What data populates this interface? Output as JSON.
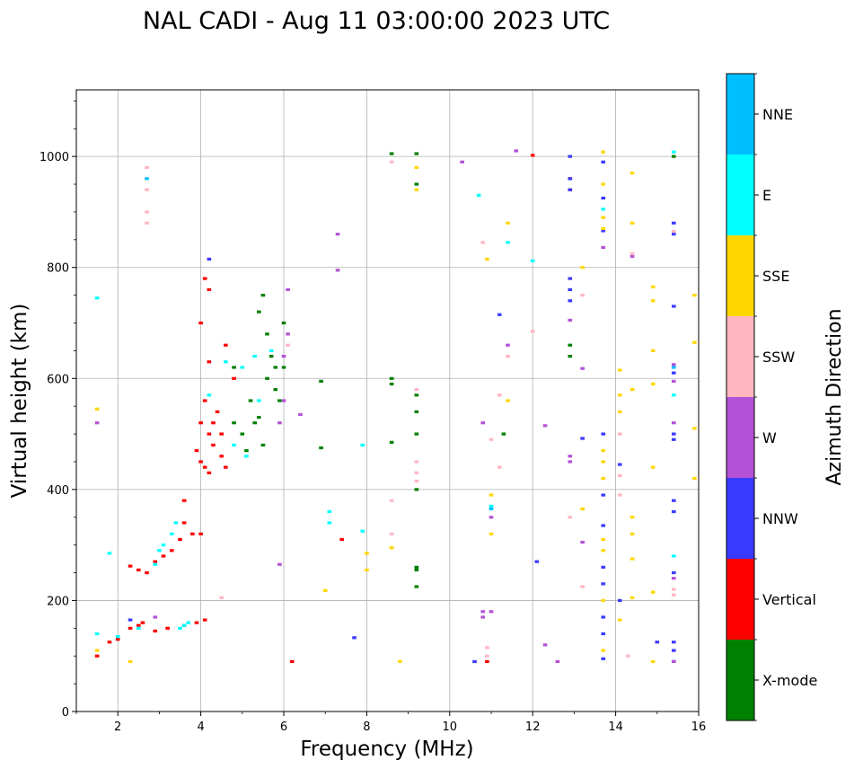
{
  "chart_data": {
    "type": "scatter",
    "title": "NAL CADI - Aug 11 03:00:00 2023 UTC",
    "xlabel": "Frequency (MHz)",
    "ylabel": "Virtual height (km)",
    "xlim": [
      1,
      16
    ],
    "ylim": [
      0,
      1120
    ],
    "xticks": [
      2,
      4,
      6,
      8,
      10,
      12,
      14,
      16
    ],
    "yticks": [
      0,
      200,
      400,
      600,
      800,
      1000
    ],
    "grid": true,
    "colorbar": {
      "label": "Azimuth Direction",
      "categories": [
        "X-mode",
        "Vertical",
        "NNW",
        "W",
        "SSW",
        "SSE",
        "E",
        "NNE"
      ],
      "colors": [
        "#008000",
        "#ff0000",
        "#3a3aff",
        "#b352d6",
        "#ffb6c1",
        "#ffd700",
        "#00ffff",
        "#00bfff"
      ]
    },
    "series": [
      {
        "name": "Vertical",
        "points": [
          [
            1.5,
            100
          ],
          [
            1.8,
            125
          ],
          [
            2.0,
            130
          ],
          [
            2.3,
            150
          ],
          [
            2.5,
            155
          ],
          [
            2.6,
            160
          ],
          [
            2.9,
            145
          ],
          [
            3.2,
            150
          ],
          [
            3.6,
            155
          ],
          [
            3.9,
            160
          ],
          [
            4.1,
            165
          ],
          [
            2.3,
            262
          ],
          [
            2.5,
            255
          ],
          [
            2.7,
            250
          ],
          [
            2.9,
            270
          ],
          [
            3.1,
            280
          ],
          [
            3.3,
            290
          ],
          [
            3.5,
            310
          ],
          [
            3.6,
            340
          ],
          [
            3.6,
            380
          ],
          [
            3.8,
            320
          ],
          [
            4.0,
            320
          ],
          [
            3.9,
            470
          ],
          [
            4.0,
            450
          ],
          [
            4.1,
            440
          ],
          [
            4.2,
            430
          ],
          [
            4.2,
            500
          ],
          [
            4.3,
            520
          ],
          [
            4.4,
            540
          ],
          [
            4.5,
            460
          ],
          [
            4.6,
            440
          ],
          [
            4.0,
            520
          ],
          [
            4.1,
            560
          ],
          [
            4.2,
            630
          ],
          [
            4.0,
            700
          ],
          [
            4.1,
            780
          ],
          [
            4.2,
            760
          ],
          [
            4.6,
            660
          ],
          [
            4.8,
            600
          ],
          [
            4.3,
            480
          ],
          [
            4.5,
            500
          ],
          [
            6.2,
            90
          ],
          [
            7.4,
            310
          ],
          [
            10.9,
            90
          ],
          [
            12.0,
            1002
          ],
          [
            12.9,
            940
          ],
          [
            12.9,
            960
          ]
        ]
      },
      {
        "name": "X-mode",
        "points": [
          [
            4.8,
            520
          ],
          [
            5.0,
            500
          ],
          [
            5.2,
            560
          ],
          [
            5.4,
            530
          ],
          [
            5.6,
            600
          ],
          [
            5.8,
            620
          ],
          [
            5.9,
            560
          ],
          [
            5.5,
            480
          ],
          [
            5.7,
            640
          ],
          [
            6.0,
            700
          ],
          [
            5.6,
            680
          ],
          [
            5.3,
            520
          ],
          [
            5.1,
            470
          ],
          [
            5.8,
            580
          ],
          [
            6.0,
            620
          ],
          [
            4.8,
            620
          ],
          [
            5.4,
            720
          ],
          [
            5.5,
            750
          ],
          [
            6.9,
            595
          ],
          [
            6.9,
            475
          ],
          [
            8.6,
            600
          ],
          [
            8.6,
            590
          ],
          [
            8.6,
            485
          ],
          [
            9.2,
            260
          ],
          [
            9.2,
            255
          ],
          [
            9.2,
            400
          ],
          [
            9.2,
            570
          ],
          [
            9.2,
            1005
          ],
          [
            9.2,
            950
          ],
          [
            9.2,
            500
          ],
          [
            9.2,
            540
          ],
          [
            9.2,
            225
          ],
          [
            11.3,
            500
          ],
          [
            12.9,
            660
          ],
          [
            12.9,
            640
          ],
          [
            15.4,
            1000
          ],
          [
            8.6,
            1005
          ]
        ]
      },
      {
        "name": "NNW",
        "points": [
          [
            4.2,
            815
          ],
          [
            7.7,
            133
          ],
          [
            11.2,
            715
          ],
          [
            12.1,
            270
          ],
          [
            12.9,
            960
          ],
          [
            12.9,
            1000
          ],
          [
            12.9,
            940
          ],
          [
            12.9,
            780
          ],
          [
            12.9,
            760
          ],
          [
            12.9,
            740
          ],
          [
            13.2,
            492
          ],
          [
            13.7,
            95
          ],
          [
            13.7,
            140
          ],
          [
            13.7,
            170
          ],
          [
            13.7,
            230
          ],
          [
            13.7,
            260
          ],
          [
            13.7,
            335
          ],
          [
            13.7,
            390
          ],
          [
            13.7,
            500
          ],
          [
            13.7,
            866
          ],
          [
            13.7,
            925
          ],
          [
            13.7,
            990
          ],
          [
            14.1,
            200
          ],
          [
            14.1,
            445
          ],
          [
            15.0,
            125
          ],
          [
            15.4,
            90
          ],
          [
            15.4,
            110
          ],
          [
            15.4,
            125
          ],
          [
            15.4,
            250
          ],
          [
            15.4,
            380
          ],
          [
            15.4,
            360
          ],
          [
            15.4,
            490
          ],
          [
            15.4,
            500
          ],
          [
            15.4,
            610
          ],
          [
            15.4,
            730
          ],
          [
            15.4,
            860
          ],
          [
            15.4,
            880
          ],
          [
            10.6,
            90
          ],
          [
            2.3,
            165
          ]
        ]
      },
      {
        "name": "W",
        "points": [
          [
            2.9,
            170
          ],
          [
            6.0,
            640
          ],
          [
            6.1,
            680
          ],
          [
            6.1,
            760
          ],
          [
            5.9,
            520
          ],
          [
            6.0,
            560
          ],
          [
            6.4,
            535
          ],
          [
            7.3,
            860
          ],
          [
            7.3,
            795
          ],
          [
            5.9,
            265
          ],
          [
            10.3,
            990
          ],
          [
            10.8,
            520
          ],
          [
            10.8,
            180
          ],
          [
            10.8,
            170
          ],
          [
            11.0,
            180
          ],
          [
            11.0,
            350
          ],
          [
            11.4,
            660
          ],
          [
            11.6,
            1010
          ],
          [
            12.3,
            515
          ],
          [
            12.3,
            120
          ],
          [
            12.6,
            90
          ],
          [
            12.9,
            460
          ],
          [
            12.9,
            450
          ],
          [
            12.9,
            705
          ],
          [
            13.2,
            618
          ],
          [
            13.2,
            305
          ],
          [
            13.7,
            836
          ],
          [
            15.4,
            520
          ],
          [
            15.4,
            595
          ],
          [
            15.4,
            625
          ],
          [
            15.4,
            240
          ],
          [
            15.4,
            90
          ],
          [
            14.4,
            820
          ],
          [
            1.5,
            520
          ]
        ]
      },
      {
        "name": "SSW",
        "points": [
          [
            2.7,
            980
          ],
          [
            2.7,
            940
          ],
          [
            2.7,
            900
          ],
          [
            2.7,
            880
          ],
          [
            4.5,
            205
          ],
          [
            6.1,
            660
          ],
          [
            8.6,
            380
          ],
          [
            8.6,
            320
          ],
          [
            8.6,
            990
          ],
          [
            9.2,
            580
          ],
          [
            9.2,
            450
          ],
          [
            9.2,
            430
          ],
          [
            9.2,
            415
          ],
          [
            10.8,
            845
          ],
          [
            10.9,
            100
          ],
          [
            10.9,
            115
          ],
          [
            11.0,
            490
          ],
          [
            11.2,
            570
          ],
          [
            11.2,
            440
          ],
          [
            11.4,
            640
          ],
          [
            12.0,
            685
          ],
          [
            12.9,
            350
          ],
          [
            13.2,
            750
          ],
          [
            13.2,
            225
          ],
          [
            14.1,
            390
          ],
          [
            14.1,
            425
          ],
          [
            14.1,
            500
          ],
          [
            14.3,
            100
          ],
          [
            14.4,
            825
          ],
          [
            15.4,
            210
          ],
          [
            15.4,
            220
          ],
          [
            15.4,
            865
          ],
          [
            15.4,
            1008
          ]
        ]
      },
      {
        "name": "SSE",
        "points": [
          [
            1.5,
            545
          ],
          [
            1.5,
            110
          ],
          [
            2.3,
            90
          ],
          [
            7.0,
            218
          ],
          [
            8.0,
            285
          ],
          [
            8.0,
            255
          ],
          [
            8.6,
            295
          ],
          [
            8.8,
            90
          ],
          [
            9.2,
            940
          ],
          [
            9.2,
            980
          ],
          [
            11.0,
            320
          ],
          [
            11.0,
            390
          ],
          [
            10.9,
            815
          ],
          [
            11.4,
            560
          ],
          [
            11.4,
            880
          ],
          [
            13.2,
            800
          ],
          [
            13.2,
            365
          ],
          [
            13.7,
            1008
          ],
          [
            13.7,
            950
          ],
          [
            13.7,
            890
          ],
          [
            13.7,
            870
          ],
          [
            13.7,
            470
          ],
          [
            13.7,
            450
          ],
          [
            13.7,
            420
          ],
          [
            13.7,
            310
          ],
          [
            13.7,
            290
          ],
          [
            13.7,
            200
          ],
          [
            13.7,
            110
          ],
          [
            14.1,
            165
          ],
          [
            14.1,
            540
          ],
          [
            14.1,
            570
          ],
          [
            14.1,
            615
          ],
          [
            14.4,
            205
          ],
          [
            14.4,
            275
          ],
          [
            14.4,
            320
          ],
          [
            14.4,
            350
          ],
          [
            14.4,
            580
          ],
          [
            14.4,
            880
          ],
          [
            14.4,
            970
          ],
          [
            14.9,
            90
          ],
          [
            14.9,
            215
          ],
          [
            14.9,
            440
          ],
          [
            14.9,
            590
          ],
          [
            14.9,
            650
          ],
          [
            14.9,
            740
          ],
          [
            14.9,
            765
          ],
          [
            15.9,
            750
          ],
          [
            15.9,
            665
          ],
          [
            15.9,
            510
          ],
          [
            15.9,
            420
          ]
        ]
      },
      {
        "name": "E",
        "points": [
          [
            1.5,
            745
          ],
          [
            1.5,
            140
          ],
          [
            1.8,
            285
          ],
          [
            2.0,
            135
          ],
          [
            2.5,
            150
          ],
          [
            2.9,
            265
          ],
          [
            3.0,
            290
          ],
          [
            3.1,
            300
          ],
          [
            3.3,
            320
          ],
          [
            3.4,
            340
          ],
          [
            3.5,
            150
          ],
          [
            3.6,
            155
          ],
          [
            3.7,
            160
          ],
          [
            4.2,
            570
          ],
          [
            4.6,
            630
          ],
          [
            5.0,
            620
          ],
          [
            5.3,
            640
          ],
          [
            5.7,
            650
          ],
          [
            5.1,
            460
          ],
          [
            4.8,
            480
          ],
          [
            5.4,
            560
          ],
          [
            7.1,
            360
          ],
          [
            7.1,
            340
          ],
          [
            7.9,
            480
          ],
          [
            7.9,
            325
          ],
          [
            10.7,
            930
          ],
          [
            11.0,
            370
          ],
          [
            11.4,
            845
          ],
          [
            12.0,
            812
          ],
          [
            13.7,
            905
          ],
          [
            15.4,
            570
          ],
          [
            15.4,
            280
          ],
          [
            15.4,
            1008
          ]
        ]
      },
      {
        "name": "NNE",
        "points": [
          [
            2.7,
            960
          ],
          [
            11.0,
            365
          ],
          [
            15.4,
            620
          ]
        ]
      }
    ]
  }
}
